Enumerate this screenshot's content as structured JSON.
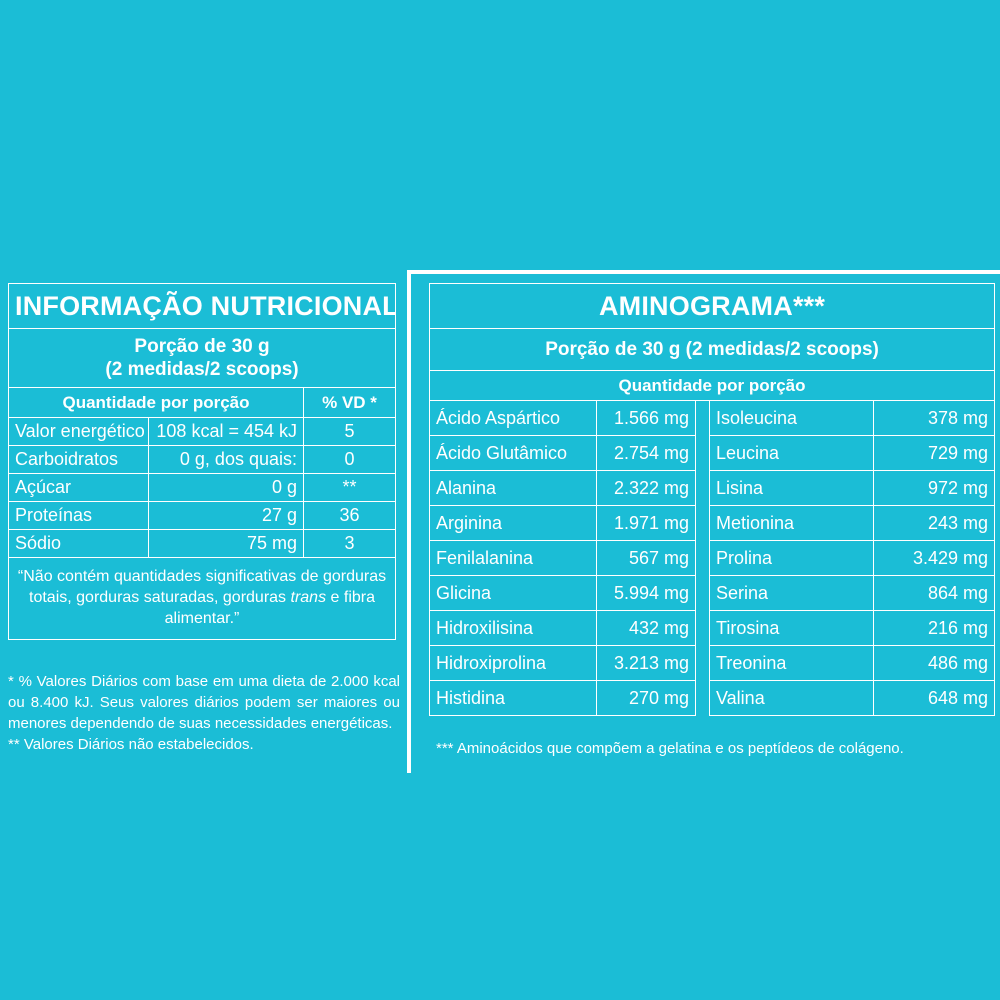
{
  "nutrition": {
    "title": "INFORMAÇÃO NUTRICIONAL",
    "portion_line1": "Porção de 30 g",
    "portion_line2": "(2 medidas/2 scoops)",
    "header_qty": "Quantidade por porção",
    "header_vd": "% VD *",
    "rows": [
      {
        "name": "Valor energético",
        "amount": "108 kcal = 454 kJ",
        "vd": "5"
      },
      {
        "name": "Carboidratos",
        "amount": "0 g, dos quais:",
        "vd": "0"
      },
      {
        "name": "Açúcar",
        "amount": "0 g",
        "vd": "**"
      },
      {
        "name": "Proteínas",
        "amount": "27 g",
        "vd": "36"
      },
      {
        "name": "Sódio",
        "amount": "75 mg",
        "vd": "3"
      }
    ],
    "note_before_italic": "“Não contém quantidades significativas de gorduras totais, gorduras saturadas, gorduras",
    "note_italic": "trans",
    "note_after_italic": "e fibra alimentar.”",
    "footnote1": "* % Valores Diários com base em uma dieta de 2.000 kcal ou 8.400 kJ. Seus valores diários podem ser maiores ou menores dependendo de suas necessidades energéticas.",
    "footnote2": "** Valores Diários não estabelecidos."
  },
  "amino": {
    "title": "AMINOGRAMA***",
    "portion": "Porção de 30 g (2 medidas/2 scoops)",
    "header_qty": "Quantidade por porção",
    "rows": [
      {
        "a_name": "Ácido Aspártico",
        "a_val": "1.566 mg",
        "b_name": "Isoleucina",
        "b_val": "378 mg"
      },
      {
        "a_name": "Ácido Glutâmico",
        "a_val": "2.754 mg",
        "b_name": "Leucina",
        "b_val": "729 mg"
      },
      {
        "a_name": "Alanina",
        "a_val": "2.322 mg",
        "b_name": "Lisina",
        "b_val": "972 mg"
      },
      {
        "a_name": "Arginina",
        "a_val": "1.971 mg",
        "b_name": "Metionina",
        "b_val": "243 mg"
      },
      {
        "a_name": "Fenilalanina",
        "a_val": "567 mg",
        "b_name": "Prolina",
        "b_val": "3.429 mg"
      },
      {
        "a_name": "Glicina",
        "a_val": "5.994 mg",
        "b_name": "Serina",
        "b_val": "864 mg"
      },
      {
        "a_name": "Hidroxilisina",
        "a_val": "432 mg",
        "b_name": "Tirosina",
        "b_val": "216 mg"
      },
      {
        "a_name": "Hidroxiprolina",
        "a_val": "3.213 mg",
        "b_name": "Treonina",
        "b_val": "486 mg"
      },
      {
        "a_name": "Histidina",
        "a_val": "270 mg",
        "b_name": "Valina",
        "b_val": "648 mg"
      }
    ],
    "footnote": "*** Aminoácidos que compõem a gelatina e os peptídeos de colágeno."
  }
}
